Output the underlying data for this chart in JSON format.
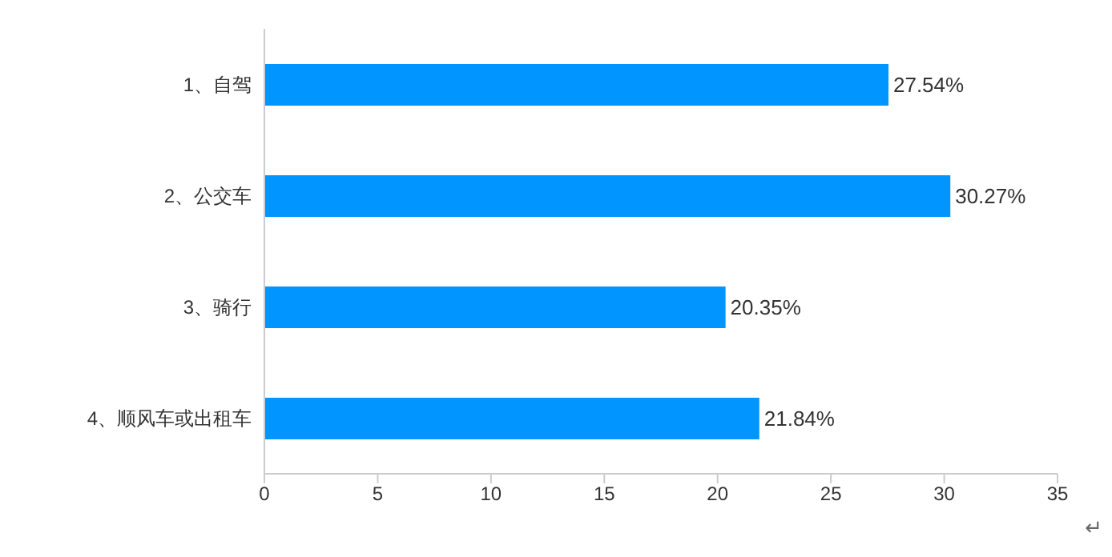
{
  "chart_data": {
    "type": "bar",
    "orientation": "horizontal",
    "categories": [
      "1、自驾",
      "2、公交车",
      "3、骑行",
      "4、顺风车或出租车"
    ],
    "values": [
      27.54,
      30.27,
      20.35,
      21.84
    ],
    "value_labels": [
      "27.54%",
      "30.27%",
      "20.35%",
      "21.84%"
    ],
    "color": "#0095ff",
    "xlim": [
      0,
      35
    ],
    "xticks": [
      0,
      5,
      10,
      15,
      20,
      25,
      30,
      35
    ],
    "grid": false,
    "annotations": [
      "↵"
    ]
  }
}
